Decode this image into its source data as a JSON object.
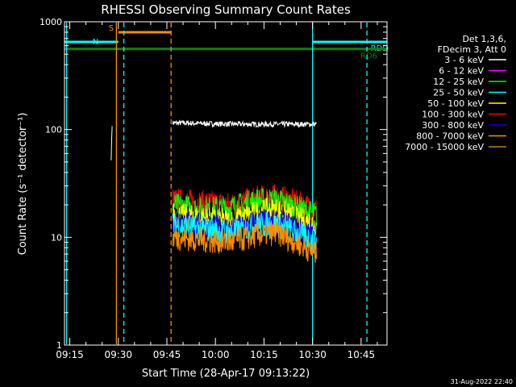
{
  "chart_data": {
    "type": "line",
    "title": "RHESSI Observing Summary Count Rates",
    "xlabel": "Start Time (28-Apr-17 09:13:22)",
    "ylabel": "Count Rate (s⁻¹ detector⁻¹)",
    "footer_date": "31-Aug-2022 22:40",
    "y_scale": "log",
    "ylim": [
      1,
      1000
    ],
    "xlim_minutes": [
      553.37,
      653.0
    ],
    "y_ticks": [
      {
        "value": 1,
        "label": "1"
      },
      {
        "value": 10,
        "label": "10"
      },
      {
        "value": 100,
        "label": "100"
      },
      {
        "value": 1000,
        "label": "1000"
      }
    ],
    "x_ticks": [
      {
        "minute": 555,
        "label": "09:15"
      },
      {
        "minute": 570,
        "label": "09:30"
      },
      {
        "minute": 585,
        "label": "09:45"
      },
      {
        "minute": 600,
        "label": "10:00"
      },
      {
        "minute": 615,
        "label": "10:15"
      },
      {
        "minute": 630,
        "label": "10:30"
      },
      {
        "minute": 645,
        "label": "10:45"
      }
    ],
    "legend": {
      "placement": "right",
      "header": [
        "Det 1,3,6,",
        "FDecim 3, Att 0"
      ],
      "entries": [
        {
          "label": "3 - 6 keV",
          "color": "#ffffff"
        },
        {
          "label": "6 - 12 keV",
          "color": "#ff00ff"
        },
        {
          "label": "12 - 25 keV",
          "color": "#00ff00"
        },
        {
          "label": "25 - 50 keV",
          "color": "#00ffff"
        },
        {
          "label": "50 - 100 keV",
          "color": "#ffff00"
        },
        {
          "label": "100 - 300 keV",
          "color": "#ff0000"
        },
        {
          "label": "300 - 800 keV",
          "color": "#0000ff"
        },
        {
          "label": "800 - 7000 keV",
          "color": "#ff8c00"
        },
        {
          "label": "7000 - 15000 keV",
          "color": "#b8860b"
        }
      ]
    },
    "series": [
      {
        "name": "3 - 6 keV",
        "color": "#ffffff",
        "segments": [
          {
            "t": [
              567.8,
              568.1
            ],
            "v": [
              55,
              110
            ]
          },
          {
            "t": [
              586.8,
              590,
              600,
              610,
              620,
              631.2
            ],
            "v": [
              115,
              115,
              113,
              112,
              112,
              112
            ]
          }
        ]
      },
      {
        "name": "100 - 300 keV",
        "color": "#ff0000",
        "segments": [
          {
            "t": [
              586.8,
              595,
              605,
              613,
              619,
              625,
              631.2
            ],
            "v": [
              22,
              21,
              20,
              23,
              24,
              21,
              18
            ]
          }
        ]
      },
      {
        "name": "12 - 25 keV",
        "color": "#00ff00",
        "segments": [
          {
            "t": [
              586.8,
              595,
              605,
              613,
              619,
              625,
              631.2
            ],
            "v": [
              20,
              18,
              19,
              22,
              22,
              19,
              16
            ]
          }
        ]
      },
      {
        "name": "50 - 100 keV",
        "color": "#ffff00",
        "segments": [
          {
            "t": [
              586.8,
              595,
              605,
              613,
              619,
              625,
              631.2
            ],
            "v": [
              16,
              15,
              14,
              17,
              18,
              15,
              13
            ]
          }
        ]
      },
      {
        "name": "300 - 800 keV",
        "color": "#0000ff",
        "segments": [
          {
            "t": [
              586.8,
              595,
              605,
              613,
              619,
              625,
              631.2
            ],
            "v": [
              14,
              13,
              12,
              14,
              14,
              12,
              10
            ]
          }
        ]
      },
      {
        "name": "25 - 50 keV",
        "color": "#00ffff",
        "segments": [
          {
            "t": [
              586.8,
              595,
              605,
              613,
              619,
              625,
              631.2
            ],
            "v": [
              13,
              12,
              11,
              13,
              13,
              11,
              9
            ]
          }
        ]
      },
      {
        "name": "800 - 7000 keV",
        "color": "#ff8c00",
        "segments": [
          {
            "t": [
              586.8,
              595,
              605,
              613,
              619,
              625,
              631.2
            ],
            "v": [
              10,
              9.5,
              9,
              10.5,
              11,
              9,
              7
            ]
          }
        ]
      }
    ],
    "attenuator_markers": [
      {
        "label": "S",
        "color": "#ff8c00",
        "t_start": 570.0,
        "t_end": 586.3,
        "value": 800
      },
      {
        "label": "N",
        "color": "#00ffff",
        "t_start": 553.37,
        "t_end": 570.0,
        "value": 650
      },
      {
        "label": "RDD",
        "color": "#00ffff",
        "t_start": 630.0,
        "t_end": 653.0,
        "value": 650
      },
      {
        "label": "RD6",
        "color": "#008800",
        "t_start": 553.37,
        "t_end": 653.0,
        "value": 560
      }
    ],
    "vertical_lines": [
      {
        "t": 554.0,
        "color": "#00ffff",
        "style": "solid"
      },
      {
        "t": 569.4,
        "color": "#ff8c00",
        "style": "solid"
      },
      {
        "t": 571.7,
        "color": "#00ffff",
        "style": "dashed"
      },
      {
        "t": 586.3,
        "color": "#ff8c00",
        "style": "dashed"
      },
      {
        "t": 630.0,
        "color": "#00ffff",
        "style": "solid"
      },
      {
        "t": 646.8,
        "color": "#00ffff",
        "style": "dashed"
      }
    ]
  }
}
